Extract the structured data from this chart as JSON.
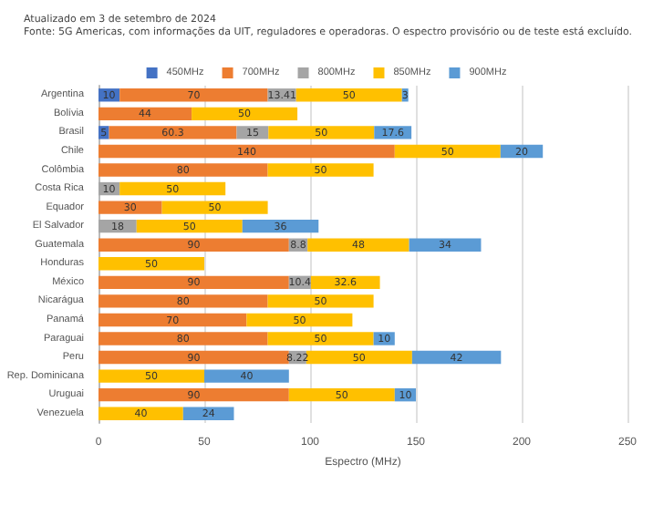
{
  "chart_data": {
    "type": "bar",
    "orientation": "horizontal",
    "stacked": true,
    "title": "Atualizado em 3 de setembro de 2024",
    "subtitle": "Fonte: 5G Americas, com informações da UIT, reguladores e operadoras. O espectro provisório ou de teste está excluído.",
    "xlabel": "Espectro (MHz)",
    "categories": [
      "Argentina",
      "Bolívia",
      "Brasil",
      "Chile",
      "Colômbia",
      "Costa Rica",
      "Equador",
      "El Salvador",
      "Guatemala",
      "Honduras",
      "México",
      "Nicarágua",
      "Panamá",
      "Paraguai",
      "Peru",
      "Rep. Dominicana",
      "Uruguai",
      "Venezuela"
    ],
    "series": [
      {
        "name": "450MHz",
        "color": "#4472c4",
        "values": [
          10,
          null,
          5,
          null,
          null,
          null,
          null,
          null,
          null,
          null,
          null,
          null,
          null,
          null,
          null,
          null,
          null,
          null
        ]
      },
      {
        "name": "700MHz",
        "color": "#ed7d31",
        "values": [
          70,
          44,
          60.3,
          140,
          80,
          null,
          30,
          null,
          90,
          null,
          90,
          80,
          70,
          80,
          90,
          null,
          90,
          null
        ]
      },
      {
        "name": "800MHz",
        "color": "#a5a5a5",
        "values": [
          13.41,
          null,
          15,
          null,
          null,
          10,
          null,
          18,
          8.8,
          null,
          10.4,
          null,
          null,
          null,
          8.22,
          null,
          null,
          null
        ]
      },
      {
        "name": "850MHz",
        "color": "#ffc000",
        "values": [
          50,
          50,
          50,
          50,
          50,
          50,
          50,
          50,
          48,
          50,
          32.6,
          50,
          50,
          50,
          50,
          50,
          50,
          40
        ]
      },
      {
        "name": "900MHz",
        "color": "#5b9bd5",
        "values": [
          3,
          null,
          17.6,
          20,
          null,
          null,
          null,
          36,
          34,
          null,
          null,
          null,
          null,
          10,
          42,
          40,
          10,
          24
        ]
      }
    ],
    "xlim": [
      0,
      250
    ],
    "xticks": [
      0,
      50,
      100,
      150,
      200,
      250
    ],
    "grid": "x",
    "legend": "top",
    "data_labels": true
  }
}
